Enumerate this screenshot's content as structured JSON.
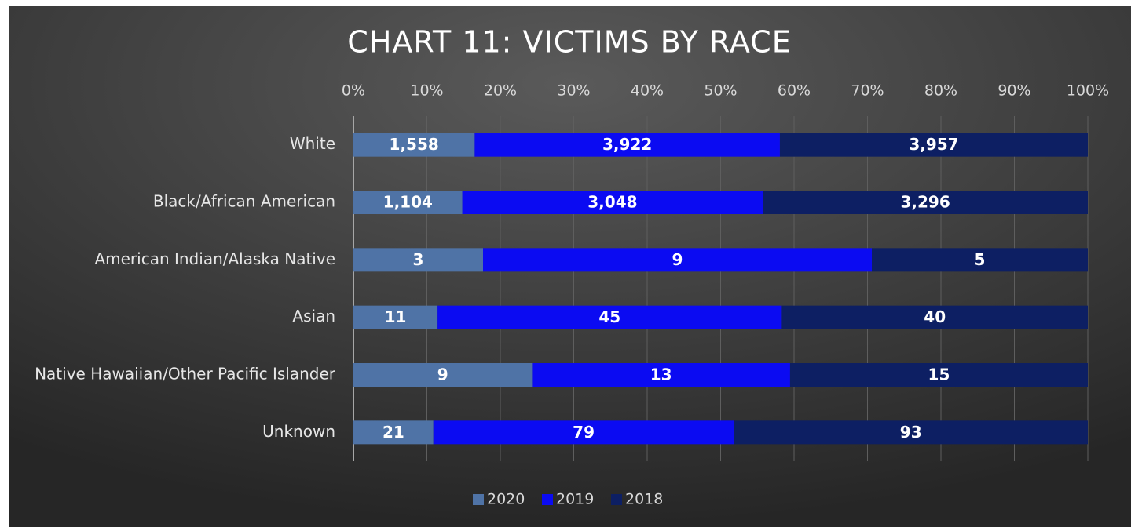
{
  "chart_data": {
    "type": "bar",
    "orientation": "horizontal",
    "stacking": "percent",
    "title": "CHART 11:  VICTIMS BY RACE",
    "categories": [
      "White",
      "Black/African American",
      "American Indian/Alaska Native",
      "Asian",
      "Native Hawaiian/Other Pacific Islander",
      "Unknown"
    ],
    "series": [
      {
        "name": "2020",
        "color": "#4f73a6",
        "values": [
          1558,
          1104,
          3,
          11,
          9,
          21
        ],
        "value_labels": [
          "1,558",
          "1,104",
          "3",
          "11",
          "9",
          "21"
        ]
      },
      {
        "name": "2019",
        "color": "#0b0bf2",
        "values": [
          3922,
          3048,
          9,
          45,
          13,
          79
        ],
        "value_labels": [
          "3,922",
          "3,048",
          "9",
          "45",
          "13",
          "79"
        ]
      },
      {
        "name": "2018",
        "color": "#0d1f63",
        "values": [
          3957,
          3296,
          5,
          40,
          15,
          93
        ],
        "value_labels": [
          "3,957",
          "3,296",
          "5",
          "40",
          "15",
          "93"
        ]
      }
    ],
    "xlim": [
      0,
      100
    ],
    "xticks": [
      {
        "value": 0,
        "label": "0%"
      },
      {
        "value": 10,
        "label": "10%"
      },
      {
        "value": 20,
        "label": "20%"
      },
      {
        "value": 30,
        "label": "30%"
      },
      {
        "value": 40,
        "label": "40%"
      },
      {
        "value": 50,
        "label": "50%"
      },
      {
        "value": 60,
        "label": "60%"
      },
      {
        "value": 70,
        "label": "70%"
      },
      {
        "value": 80,
        "label": "80%"
      },
      {
        "value": 90,
        "label": "90%"
      },
      {
        "value": 100,
        "label": "100%"
      }
    ],
    "grid": true,
    "legend": "bottom"
  }
}
